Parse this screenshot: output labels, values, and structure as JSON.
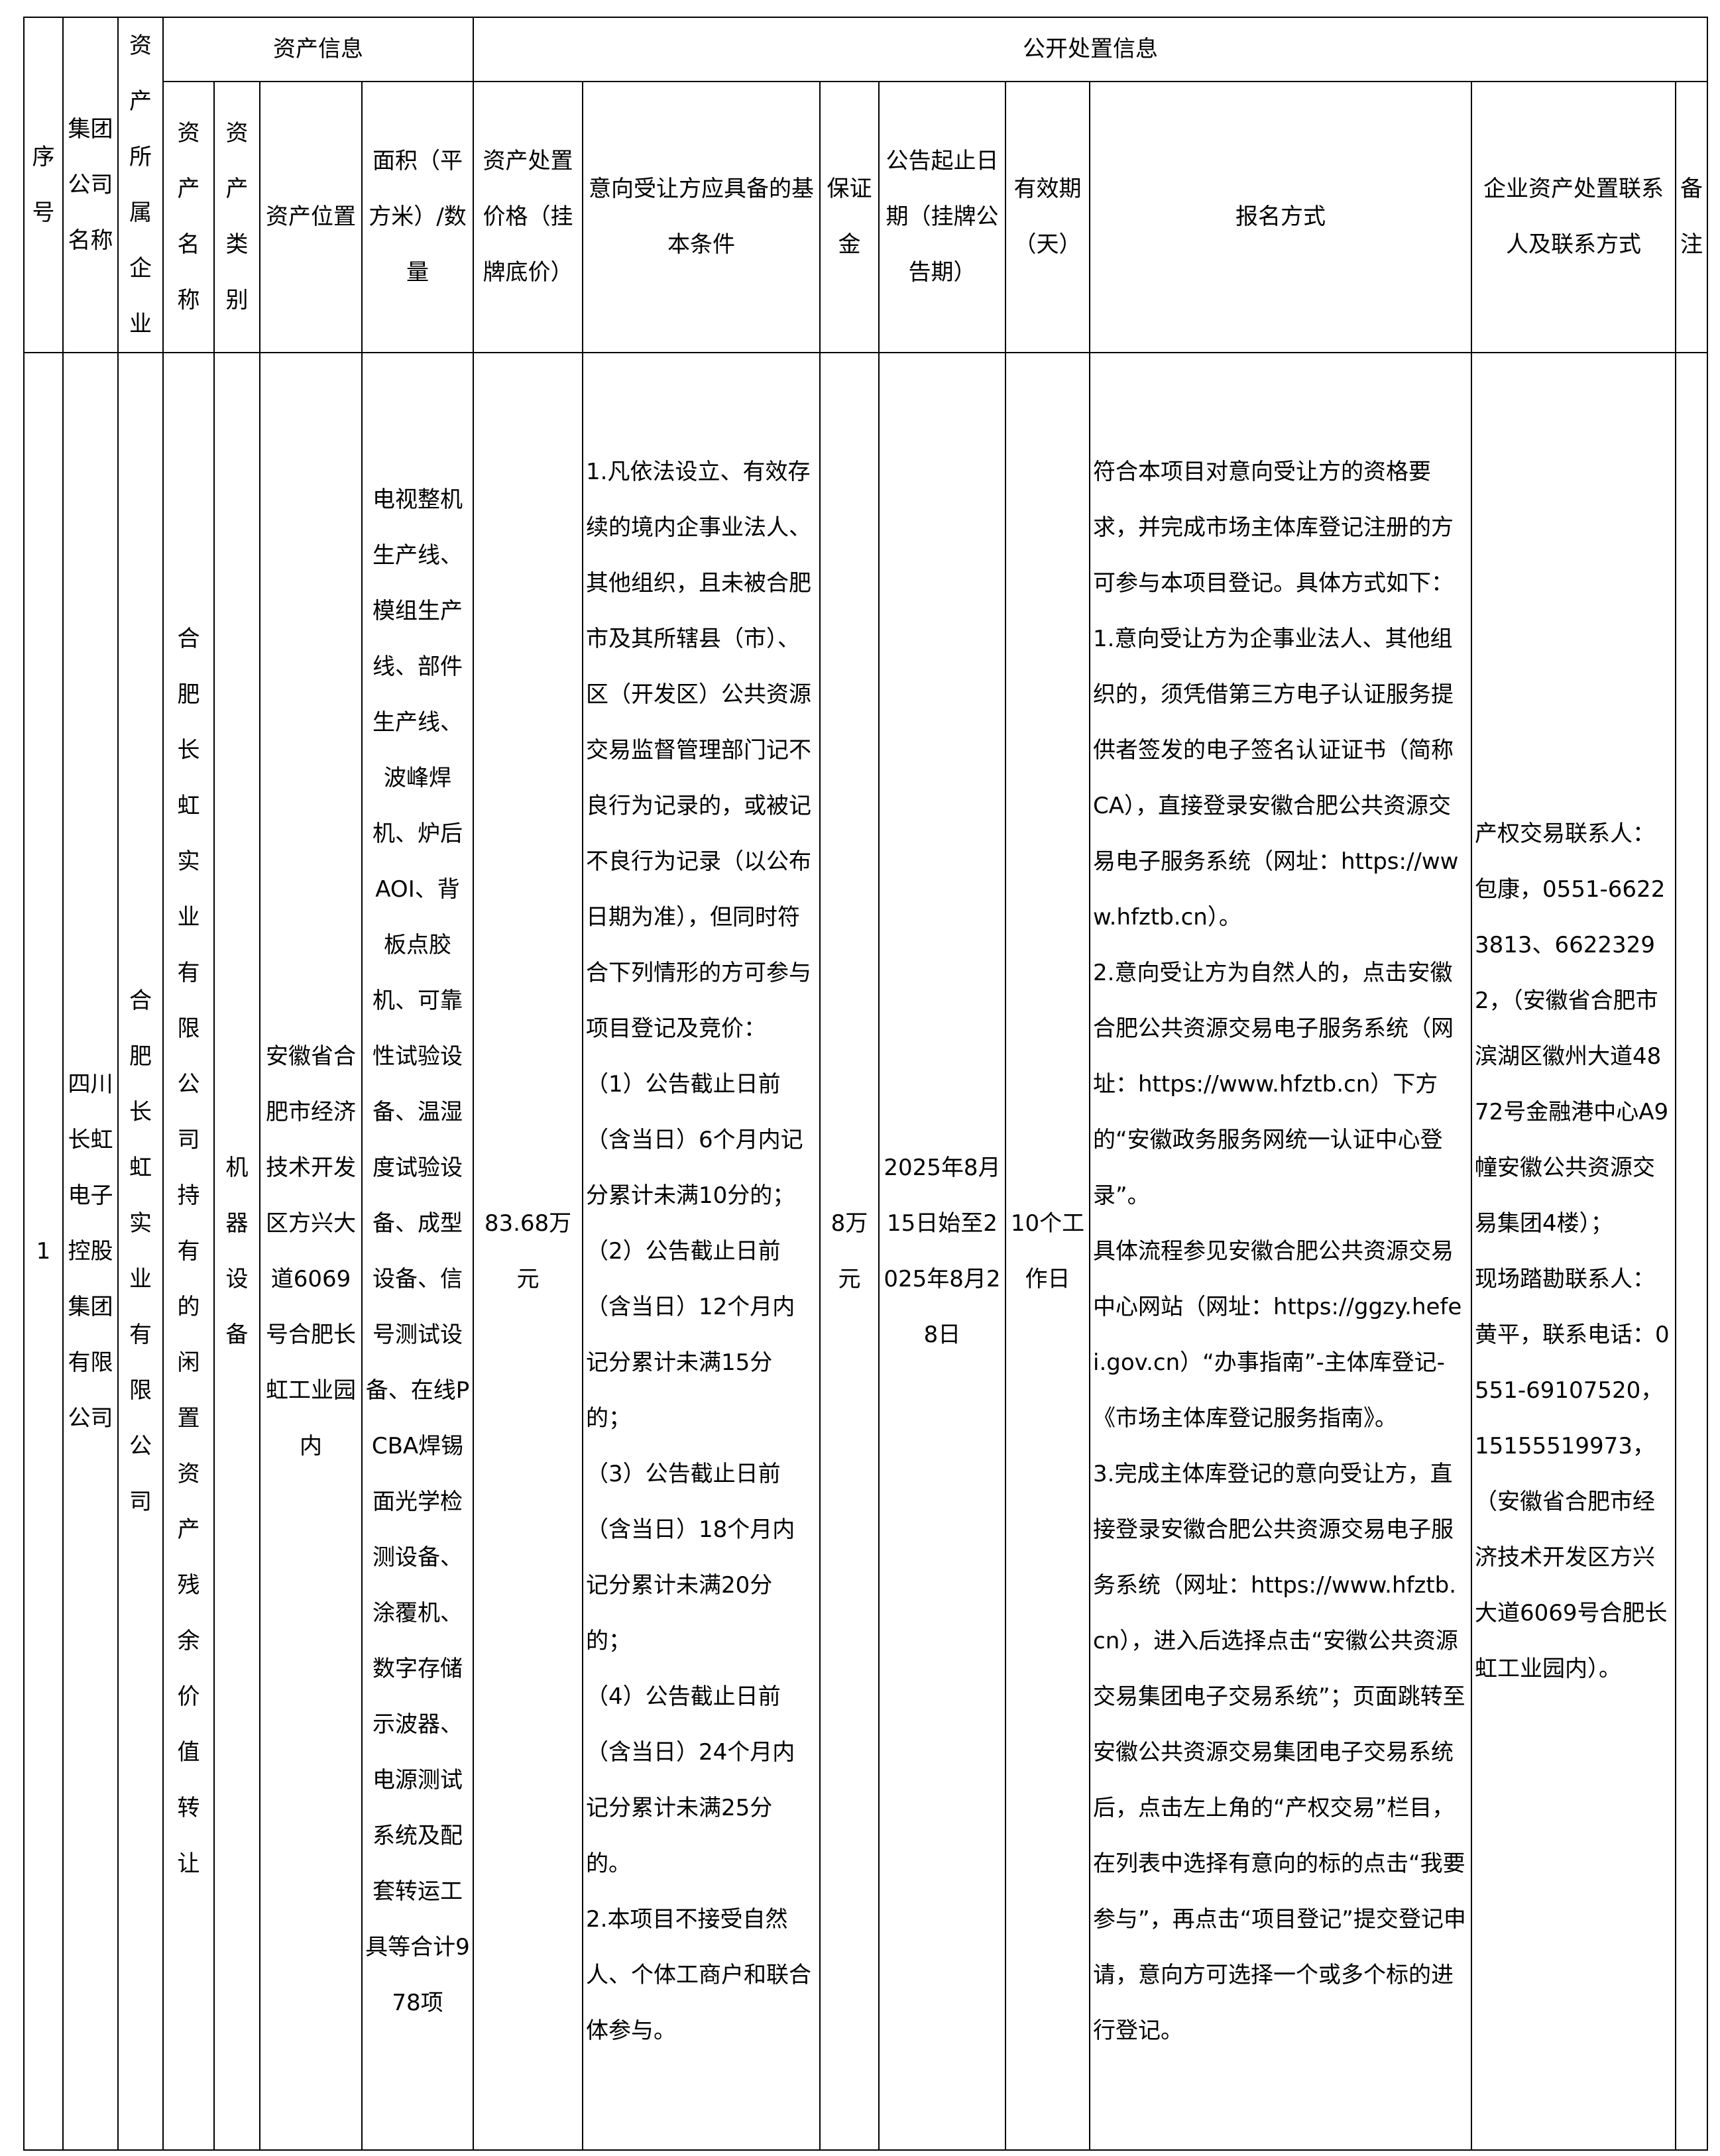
{
  "header": {
    "seq": "序号",
    "group": "集团公司名称",
    "owner": "资产所属企业",
    "asset_info": "资产信息",
    "public_info": "公开处置信息",
    "asset_name": "资产名称",
    "asset_type": "资产类别",
    "location": "资产位置",
    "area": "面积（平方米）/数量",
    "price": "资产处置价格（挂牌底价）",
    "conditions": "意向受让方应具备的基本条件",
    "deposit": "保证金",
    "dates": "公告起止日期（挂牌公告期）",
    "validity": "有效期（天）",
    "signup": "报名方式",
    "contact": "企业资产处置联系人及联系方式",
    "remark": "备注"
  },
  "rows": [
    {
      "seq": "1",
      "group": "四川长虹电子控股集团有限公司",
      "owner": "合肥长虹实业有限公司",
      "asset_name": "合肥长虹实业有限公司持有的闲置资产残余价值转让",
      "asset_type": "机器设备",
      "location": "安徽省合肥市经济技术开发区方兴大道6069号合肥长虹工业园内",
      "area": "电视整机生产线、模组生产线、部件生产线、波峰焊机、炉后AOI、背板点胶机、可靠性试验设备、温湿度试验设备、成型设备、信号测试设备、在线PCBA焊锡面光学检测设备、涂覆机、数字存储示波器、电源测试系统及配套转运工具等合计978项",
      "price": "83.68万元",
      "conditions": "1.凡依法设立、有效存续的境内企事业法人、其他组织，且未被合肥市及其所辖县（市）、区（开发区）公共资源交易监督管理部门记不良行为记录的，或被记不良行为记录（以公布日期为准），但同时符合下列情形的方可参与项目登记及竞价：\n（1）公告截止日前（含当日）6个月内记分累计未满10分的；\n（2）公告截止日前（含当日）12个月内记分累计未满15分的；\n（3）公告截止日前（含当日）18个月内记分累计未满20分的；\n（4）公告截止日前（含当日）24个月内记分累计未满25分的。\n2.本项目不接受自然人、个体工商户和联合体参与。",
      "deposit": "8万元",
      "dates": "2025年8月15日始至2025年8月28日",
      "validity": "10个工作日",
      "signup": "符合本项目对意向受让方的资格要求，并完成市场主体库登记注册的方可参与本项目登记。具体方式如下：\n1.意向受让方为企事业法人、其他组织的，须凭借第三方电子认证服务提供者签发的电子签名认证证书（简称CA），直接登录安徽合肥公共资源交易电子服务系统（网址：https://www.hfztb.cn）。\n2.意向受让方为自然人的，点击安徽合肥公共资源交易电子服务系统（网址：https://www.hfztb.cn）下方的“安徽政务服务网统一认证中心登录”。\n具体流程参见安徽合肥公共资源交易中心网站（网址：https://ggzy.hefei.gov.cn）“办事指南”-主体库登记-《市场主体库登记服务指南》。\n3.完成主体库登记的意向受让方，直接登录安徽合肥公共资源交易电子服务系统（网址：https://www.hfztb.cn），进入后选择点击“安徽公共资源交易集团电子交易系统”；页面跳转至安徽公共资源交易集团电子交易系统后，点击左上角的“产权交易”栏目，在列表中选择有意向的标的点击“我要参与”，再点击“项目登记”提交登记申请，意向方可选择一个或多个标的进行登记。",
      "contact": "产权交易联系人：包康，0551-66223813、66223292，（安徽省合肥市滨湖区徽州大道4872号金融港中心A9幢安徽公共资源交易集团4楼）；\n现场踏勘联系人：黄平，联系电话：0551-69107520，15155519973，（安徽省合肥市经济技术开发区方兴大道6069号合肥长虹工业园内）。",
      "remark": ""
    }
  ]
}
